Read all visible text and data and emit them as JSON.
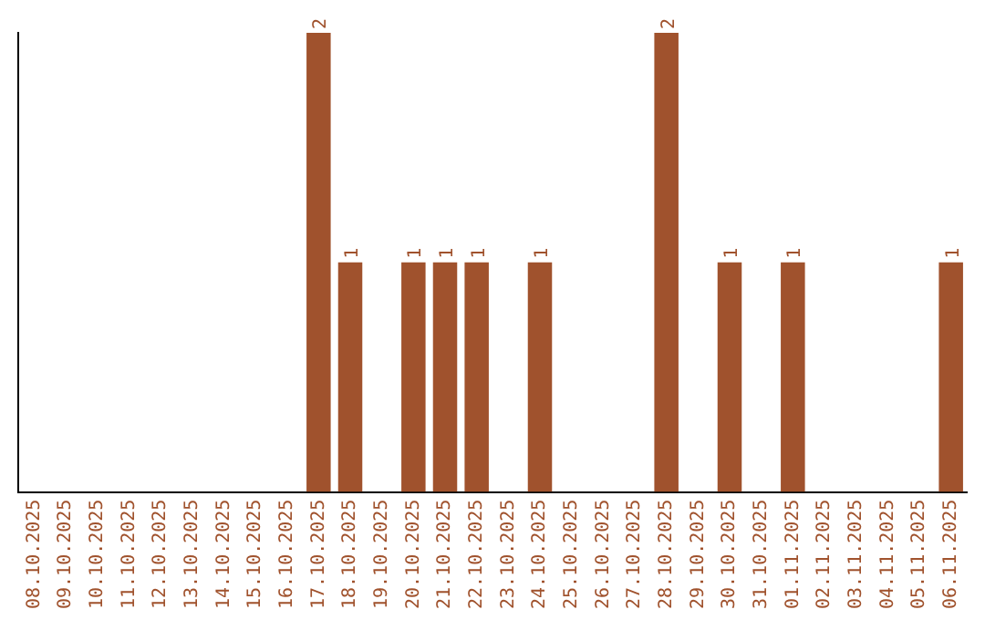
{
  "chart_data": {
    "type": "bar",
    "categories": [
      "08.10.2025",
      "09.10.2025",
      "10.10.2025",
      "11.10.2025",
      "12.10.2025",
      "13.10.2025",
      "14.10.2025",
      "15.10.2025",
      "16.10.2025",
      "17.10.2025",
      "18.10.2025",
      "19.10.2025",
      "20.10.2025",
      "21.10.2025",
      "22.10.2025",
      "23.10.2025",
      "24.10.2025",
      "25.10.2025",
      "26.10.2025",
      "27.10.2025",
      "28.10.2025",
      "29.10.2025",
      "30.10.2025",
      "31.10.2025",
      "01.11.2025",
      "02.11.2025",
      "03.11.2025",
      "04.11.2025",
      "05.11.2025",
      "06.11.2025"
    ],
    "values": [
      0,
      0,
      0,
      0,
      0,
      0,
      0,
      0,
      0,
      2,
      1,
      0,
      1,
      1,
      1,
      0,
      1,
      0,
      0,
      0,
      2,
      0,
      1,
      0,
      1,
      0,
      0,
      0,
      0,
      1
    ],
    "value_labels": [
      null,
      null,
      null,
      null,
      null,
      null,
      null,
      null,
      null,
      "2",
      "1",
      null,
      "1",
      "1",
      "1",
      null,
      "1",
      null,
      null,
      null,
      "2",
      null,
      "1",
      null,
      "1",
      null,
      null,
      null,
      null,
      "1"
    ],
    "color": "#a0522d",
    "ylim": [
      0,
      2
    ],
    "tick_labels": "x",
    "grid": false,
    "legend": false
  }
}
